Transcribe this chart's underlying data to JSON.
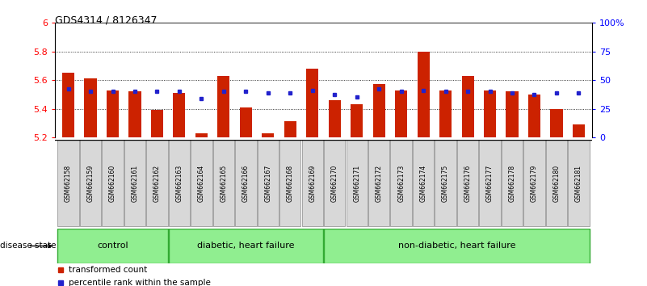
{
  "title": "GDS4314 / 8126347",
  "samples": [
    "GSM662158",
    "GSM662159",
    "GSM662160",
    "GSM662161",
    "GSM662162",
    "GSM662163",
    "GSM662164",
    "GSM662165",
    "GSM662166",
    "GSM662167",
    "GSM662168",
    "GSM662169",
    "GSM662170",
    "GSM662171",
    "GSM662172",
    "GSM662173",
    "GSM662174",
    "GSM662175",
    "GSM662176",
    "GSM662177",
    "GSM662178",
    "GSM662179",
    "GSM662180",
    "GSM662181"
  ],
  "bar_values": [
    5.65,
    5.61,
    5.53,
    5.52,
    5.39,
    5.51,
    5.23,
    5.63,
    5.41,
    5.23,
    5.31,
    5.68,
    5.46,
    5.43,
    5.57,
    5.53,
    5.8,
    5.53,
    5.63,
    5.53,
    5.52,
    5.5,
    5.4,
    5.29
  ],
  "percentile_values": [
    5.54,
    5.52,
    5.52,
    5.52,
    5.52,
    5.52,
    5.47,
    5.52,
    5.52,
    5.51,
    5.51,
    5.53,
    5.5,
    5.48,
    5.54,
    5.52,
    5.53,
    5.52,
    5.52,
    5.52,
    5.51,
    5.5,
    5.51,
    5.51
  ],
  "ylim": [
    5.2,
    6.0
  ],
  "yticks_left": [
    5.2,
    5.4,
    5.6,
    5.8,
    6.0
  ],
  "ytick_labels_left": [
    "5.2",
    "5.4",
    "5.6",
    "5.8",
    "6"
  ],
  "ytick_labels_right": [
    "0",
    "25",
    "50",
    "75",
    "100%"
  ],
  "bar_color": "#cc2200",
  "percentile_color": "#2222cc",
  "groups_def": [
    {
      "start": 0,
      "end": 4,
      "label": "control"
    },
    {
      "start": 5,
      "end": 11,
      "label": "diabetic, heart failure"
    },
    {
      "start": 12,
      "end": 23,
      "label": "non-diabetic, heart failure"
    }
  ],
  "group_fill": "#90ee90",
  "group_edge": "#33aa33",
  "disease_state_label": "disease state",
  "legend_bar_label": "transformed count",
  "legend_pct_label": "percentile rank within the sample",
  "baseline": 5.2
}
